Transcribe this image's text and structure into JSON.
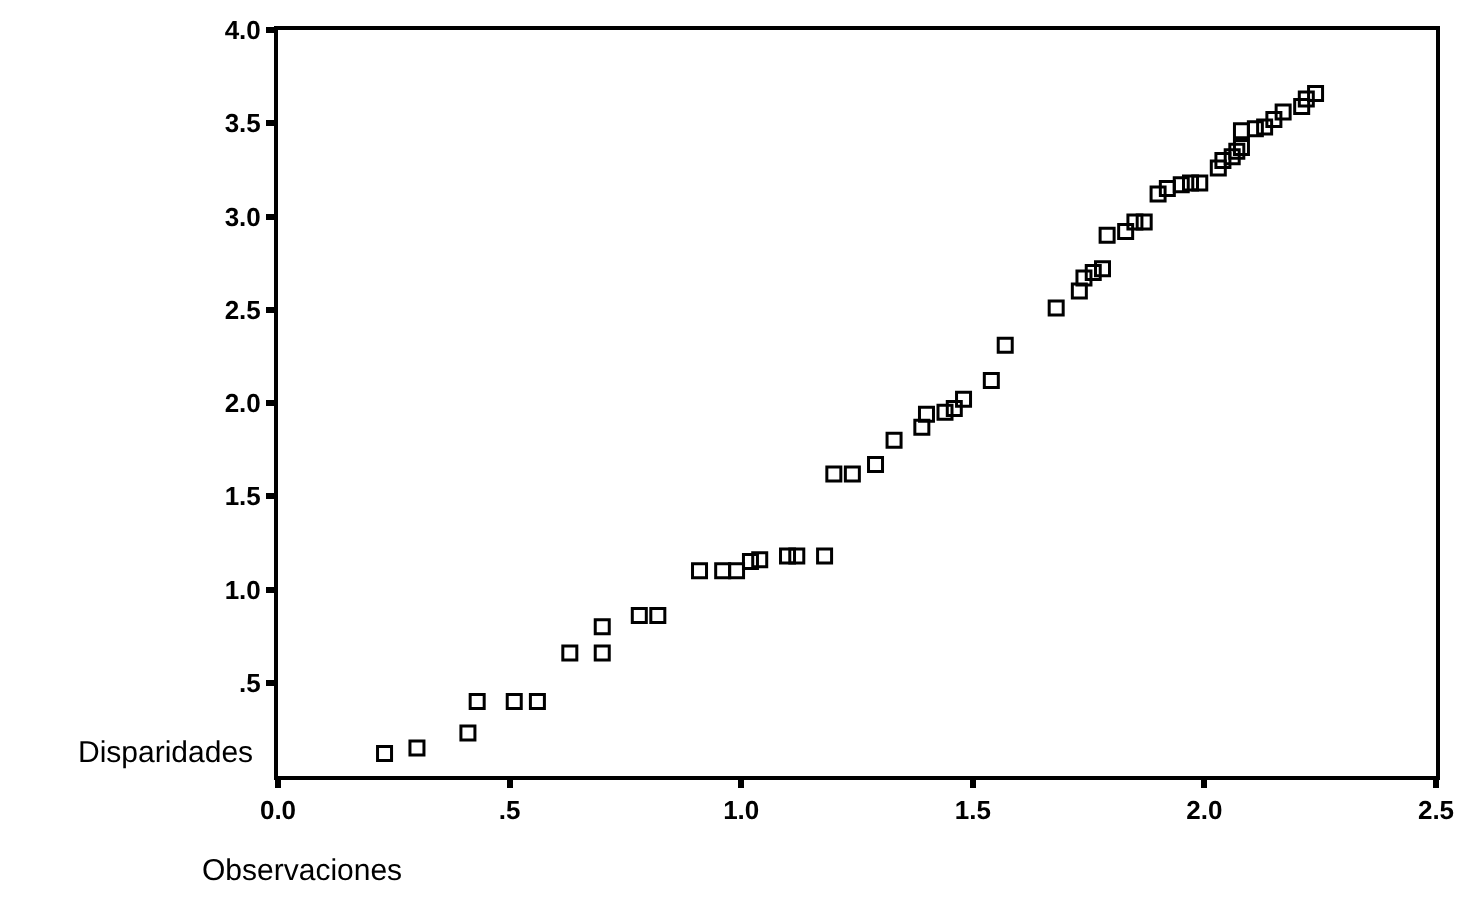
{
  "chart_data": {
    "type": "scatter",
    "xlabel": "Observaciones",
    "ylabel": "Disparidades",
    "x": [
      0.23,
      0.3,
      0.41,
      0.43,
      0.51,
      0.56,
      0.63,
      0.7,
      0.7,
      0.78,
      0.82,
      0.91,
      0.96,
      0.99,
      1.02,
      1.04,
      1.1,
      1.12,
      1.18,
      1.2,
      1.24,
      1.29,
      1.33,
      1.39,
      1.4,
      1.44,
      1.46,
      1.48,
      1.54,
      1.57,
      1.68,
      1.73,
      1.74,
      1.76,
      1.78,
      1.79,
      1.83,
      1.85,
      1.87,
      1.9,
      1.92,
      1.95,
      1.97,
      1.99,
      2.03,
      2.04,
      2.06,
      2.07,
      2.08,
      2.08,
      2.11,
      2.13,
      2.15,
      2.17,
      2.21,
      2.22,
      2.24
    ],
    "values": [
      0.12,
      0.15,
      0.23,
      0.4,
      0.4,
      0.4,
      0.66,
      0.66,
      0.8,
      0.86,
      0.86,
      1.1,
      1.1,
      1.1,
      1.15,
      1.16,
      1.18,
      1.18,
      1.18,
      1.62,
      1.62,
      1.67,
      1.8,
      1.87,
      1.94,
      1.95,
      1.97,
      2.02,
      2.12,
      2.31,
      2.51,
      2.6,
      2.67,
      2.7,
      2.72,
      2.9,
      2.92,
      2.97,
      2.97,
      3.12,
      3.15,
      3.17,
      3.18,
      3.18,
      3.26,
      3.3,
      3.32,
      3.35,
      3.37,
      3.46,
      3.47,
      3.48,
      3.52,
      3.56,
      3.59,
      3.63,
      3.66
    ],
    "color": "#000000",
    "marker": "square",
    "xlim": [
      0,
      2.5
    ],
    "xticks": [
      {
        "value": 0,
        "label": "0.0"
      },
      {
        "value": 0.5,
        "label": ".5"
      },
      {
        "value": 1,
        "label": "1.0"
      },
      {
        "value": 1.5,
        "label": "1.5"
      },
      {
        "value": 2,
        "label": "2.0"
      },
      {
        "value": 2.5,
        "label": "2.5"
      }
    ],
    "ylim": [
      0,
      4
    ],
    "yticks": [
      {
        "value": 0.5,
        "label": ".5"
      },
      {
        "value": 1,
        "label": "1.0"
      },
      {
        "value": 1.5,
        "label": "1.5"
      },
      {
        "value": 2,
        "label": "2.0"
      },
      {
        "value": 2.5,
        "label": "2.5"
      },
      {
        "value": 3,
        "label": "3.0"
      },
      {
        "value": 3.5,
        "label": "3.5"
      },
      {
        "value": 4,
        "label": "4.0"
      }
    ],
    "grid": false
  }
}
